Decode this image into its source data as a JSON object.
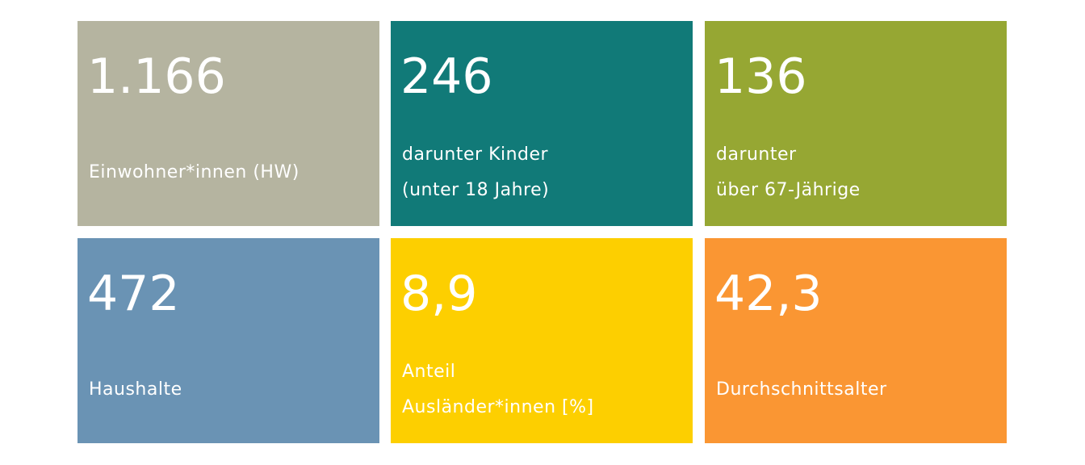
{
  "tiles": [
    {
      "value": "1.166",
      "label": [
        "Einwohner*innen (HW)"
      ]
    },
    {
      "value": "246",
      "label": [
        "darunter Kinder",
        "(unter 18 Jahre)"
      ]
    },
    {
      "value": "136",
      "label": [
        "darunter",
        "über 67-Jährige"
      ]
    },
    {
      "value": "472",
      "label": [
        "Haushalte"
      ]
    },
    {
      "value": "8,9",
      "label": [
        "Anteil",
        "Ausländer*innen [%]"
      ]
    },
    {
      "value": "42,3",
      "label": [
        "Durchschnittsalter"
      ]
    }
  ]
}
